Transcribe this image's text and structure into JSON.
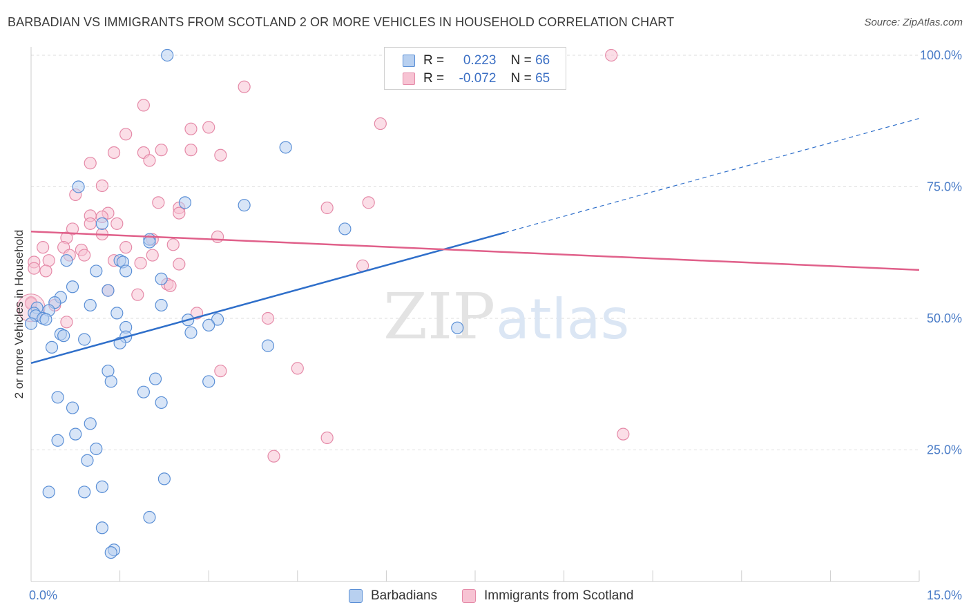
{
  "header": {
    "title": "BARBADIAN VS IMMIGRANTS FROM SCOTLAND 2 OR MORE VEHICLES IN HOUSEHOLD CORRELATION CHART",
    "source": "Source: ZipAtlas.com"
  },
  "watermark": {
    "zip": "ZIP",
    "atlas": "atlas"
  },
  "legend": {
    "row1": {
      "r_label": "R =",
      "r_value": "0.223",
      "n_label": "N =",
      "n_value": "66"
    },
    "row2": {
      "r_label": "R =",
      "r_value": "-0.072",
      "n_label": "N =",
      "n_value": "65"
    }
  },
  "bottom_legend": {
    "series1": "Barbadians",
    "series2": "Immigrants from Scotland"
  },
  "colors": {
    "blue_fill": "#b8d0f0",
    "blue_stroke": "#5a8fd6",
    "blue_line": "#2f6fca",
    "pink_fill": "#f7c3d3",
    "pink_stroke": "#e58aa8",
    "pink_line": "#e0608a",
    "grid": "#dddddd",
    "axis_tick_text": "#4a7cc7"
  },
  "chart_data": {
    "type": "scatter",
    "title": "BARBADIAN VS IMMIGRANTS FROM SCOTLAND 2 OR MORE VEHICLES IN HOUSEHOLD CORRELATION CHART",
    "xlabel": "",
    "ylabel": "2 or more Vehicles in Household",
    "xlim": [
      0,
      15
    ],
    "ylim": [
      0,
      105
    ],
    "x_tick_labels": [
      "0.0%",
      "15.0%"
    ],
    "y_ticks": [
      25,
      50,
      75,
      100
    ],
    "y_tick_labels": [
      "25.0%",
      "50.0%",
      "75.0%",
      "100.0%"
    ],
    "grid": true,
    "legend_position": "top-center",
    "series": [
      {
        "name": "Barbadians",
        "R": 0.223,
        "N": 66,
        "trend": {
          "x0": 0,
          "y0": 41.5,
          "x1": 8.0,
          "y1": 66.3,
          "dashed_to_x": 15,
          "dashed_to_y": 88.0
        },
        "points": [
          [
            2.3,
            100
          ],
          [
            4.3,
            82.5
          ],
          [
            0.8,
            75
          ],
          [
            2.6,
            72
          ],
          [
            3.6,
            71.5
          ],
          [
            1.2,
            68
          ],
          [
            5.3,
            67
          ],
          [
            2.0,
            65
          ],
          [
            2.0,
            64.5
          ],
          [
            0.6,
            61
          ],
          [
            1.5,
            61
          ],
          [
            1.55,
            60.7
          ],
          [
            1.1,
            59
          ],
          [
            1.6,
            59
          ],
          [
            2.2,
            57.5
          ],
          [
            0.7,
            56
          ],
          [
            1.3,
            55.3
          ],
          [
            0.5,
            54
          ],
          [
            0.4,
            53
          ],
          [
            1.0,
            52.5
          ],
          [
            2.2,
            52.5
          ],
          [
            0.1,
            52
          ],
          [
            0.3,
            51.5
          ],
          [
            0.05,
            51
          ],
          [
            0.08,
            50.5
          ],
          [
            0.2,
            50
          ],
          [
            0.25,
            49.8
          ],
          [
            0.0,
            49
          ],
          [
            1.45,
            51
          ],
          [
            2.65,
            49.7
          ],
          [
            3.15,
            49.8
          ],
          [
            3.0,
            48.7
          ],
          [
            1.6,
            48.3
          ],
          [
            7.2,
            48.2
          ],
          [
            0.5,
            47
          ],
          [
            0.55,
            46.7
          ],
          [
            1.6,
            46.5
          ],
          [
            0.9,
            46
          ],
          [
            2.7,
            47.3
          ],
          [
            1.5,
            45.3
          ],
          [
            0.35,
            44.5
          ],
          [
            4.0,
            44.8
          ],
          [
            1.3,
            40
          ],
          [
            2.1,
            38.5
          ],
          [
            1.35,
            38
          ],
          [
            3.0,
            38
          ],
          [
            1.9,
            36
          ],
          [
            0.45,
            35
          ],
          [
            2.2,
            34
          ],
          [
            0.7,
            33
          ],
          [
            1.0,
            30
          ],
          [
            0.75,
            28
          ],
          [
            0.45,
            26.8
          ],
          [
            1.1,
            25.2
          ],
          [
            0.95,
            23
          ],
          [
            2.25,
            19.5
          ],
          [
            1.2,
            18
          ],
          [
            0.3,
            17
          ],
          [
            0.9,
            17
          ],
          [
            2.0,
            12.2
          ],
          [
            1.2,
            10.2
          ],
          [
            1.4,
            6
          ],
          [
            1.35,
            5.5
          ]
        ]
      },
      {
        "name": "Immigrants from Scotland",
        "R": -0.072,
        "N": 65,
        "trend": {
          "x0": 0,
          "y0": 66.5,
          "x1": 15,
          "y1": 59.2
        },
        "points": [
          [
            9.8,
            100
          ],
          [
            3.6,
            94
          ],
          [
            1.9,
            90.5
          ],
          [
            5.9,
            87
          ],
          [
            1.6,
            85
          ],
          [
            2.7,
            86
          ],
          [
            3.0,
            86.3
          ],
          [
            1.4,
            81.5
          ],
          [
            1.9,
            81.5
          ],
          [
            2.2,
            82
          ],
          [
            2.7,
            82
          ],
          [
            3.2,
            81
          ],
          [
            2.0,
            80
          ],
          [
            1.0,
            79.5
          ],
          [
            1.2,
            75.2
          ],
          [
            0.75,
            73.5
          ],
          [
            2.15,
            72
          ],
          [
            5.7,
            72
          ],
          [
            5.0,
            71
          ],
          [
            2.5,
            71
          ],
          [
            2.5,
            70
          ],
          [
            1.3,
            70
          ],
          [
            1.0,
            69.5
          ],
          [
            1.2,
            69.3
          ],
          [
            1.0,
            68
          ],
          [
            1.45,
            68
          ],
          [
            0.7,
            67
          ],
          [
            1.2,
            66
          ],
          [
            3.15,
            65.5
          ],
          [
            0.6,
            65.3
          ],
          [
            2.05,
            65
          ],
          [
            0.2,
            63.5
          ],
          [
            0.55,
            63.5
          ],
          [
            0.85,
            63
          ],
          [
            1.6,
            63.5
          ],
          [
            2.4,
            64
          ],
          [
            0.65,
            62
          ],
          [
            0.9,
            62
          ],
          [
            2.05,
            62
          ],
          [
            0.3,
            61
          ],
          [
            0.05,
            60.7
          ],
          [
            1.4,
            61
          ],
          [
            1.85,
            60.5
          ],
          [
            2.5,
            60.3
          ],
          [
            5.6,
            60
          ],
          [
            0.05,
            59.5
          ],
          [
            0.25,
            59
          ],
          [
            2.3,
            56.5
          ],
          [
            2.35,
            56.2
          ],
          [
            1.3,
            55.3
          ],
          [
            1.8,
            54.5
          ],
          [
            0.0,
            53
          ],
          [
            0.0,
            52.8
          ],
          [
            0.4,
            52.5
          ],
          [
            2.8,
            51
          ],
          [
            4.0,
            50
          ],
          [
            0.6,
            49.3
          ],
          [
            3.2,
            40
          ],
          [
            4.5,
            40.5
          ],
          [
            10.0,
            28
          ],
          [
            5.0,
            27.3
          ],
          [
            4.1,
            23.8
          ]
        ]
      }
    ]
  }
}
